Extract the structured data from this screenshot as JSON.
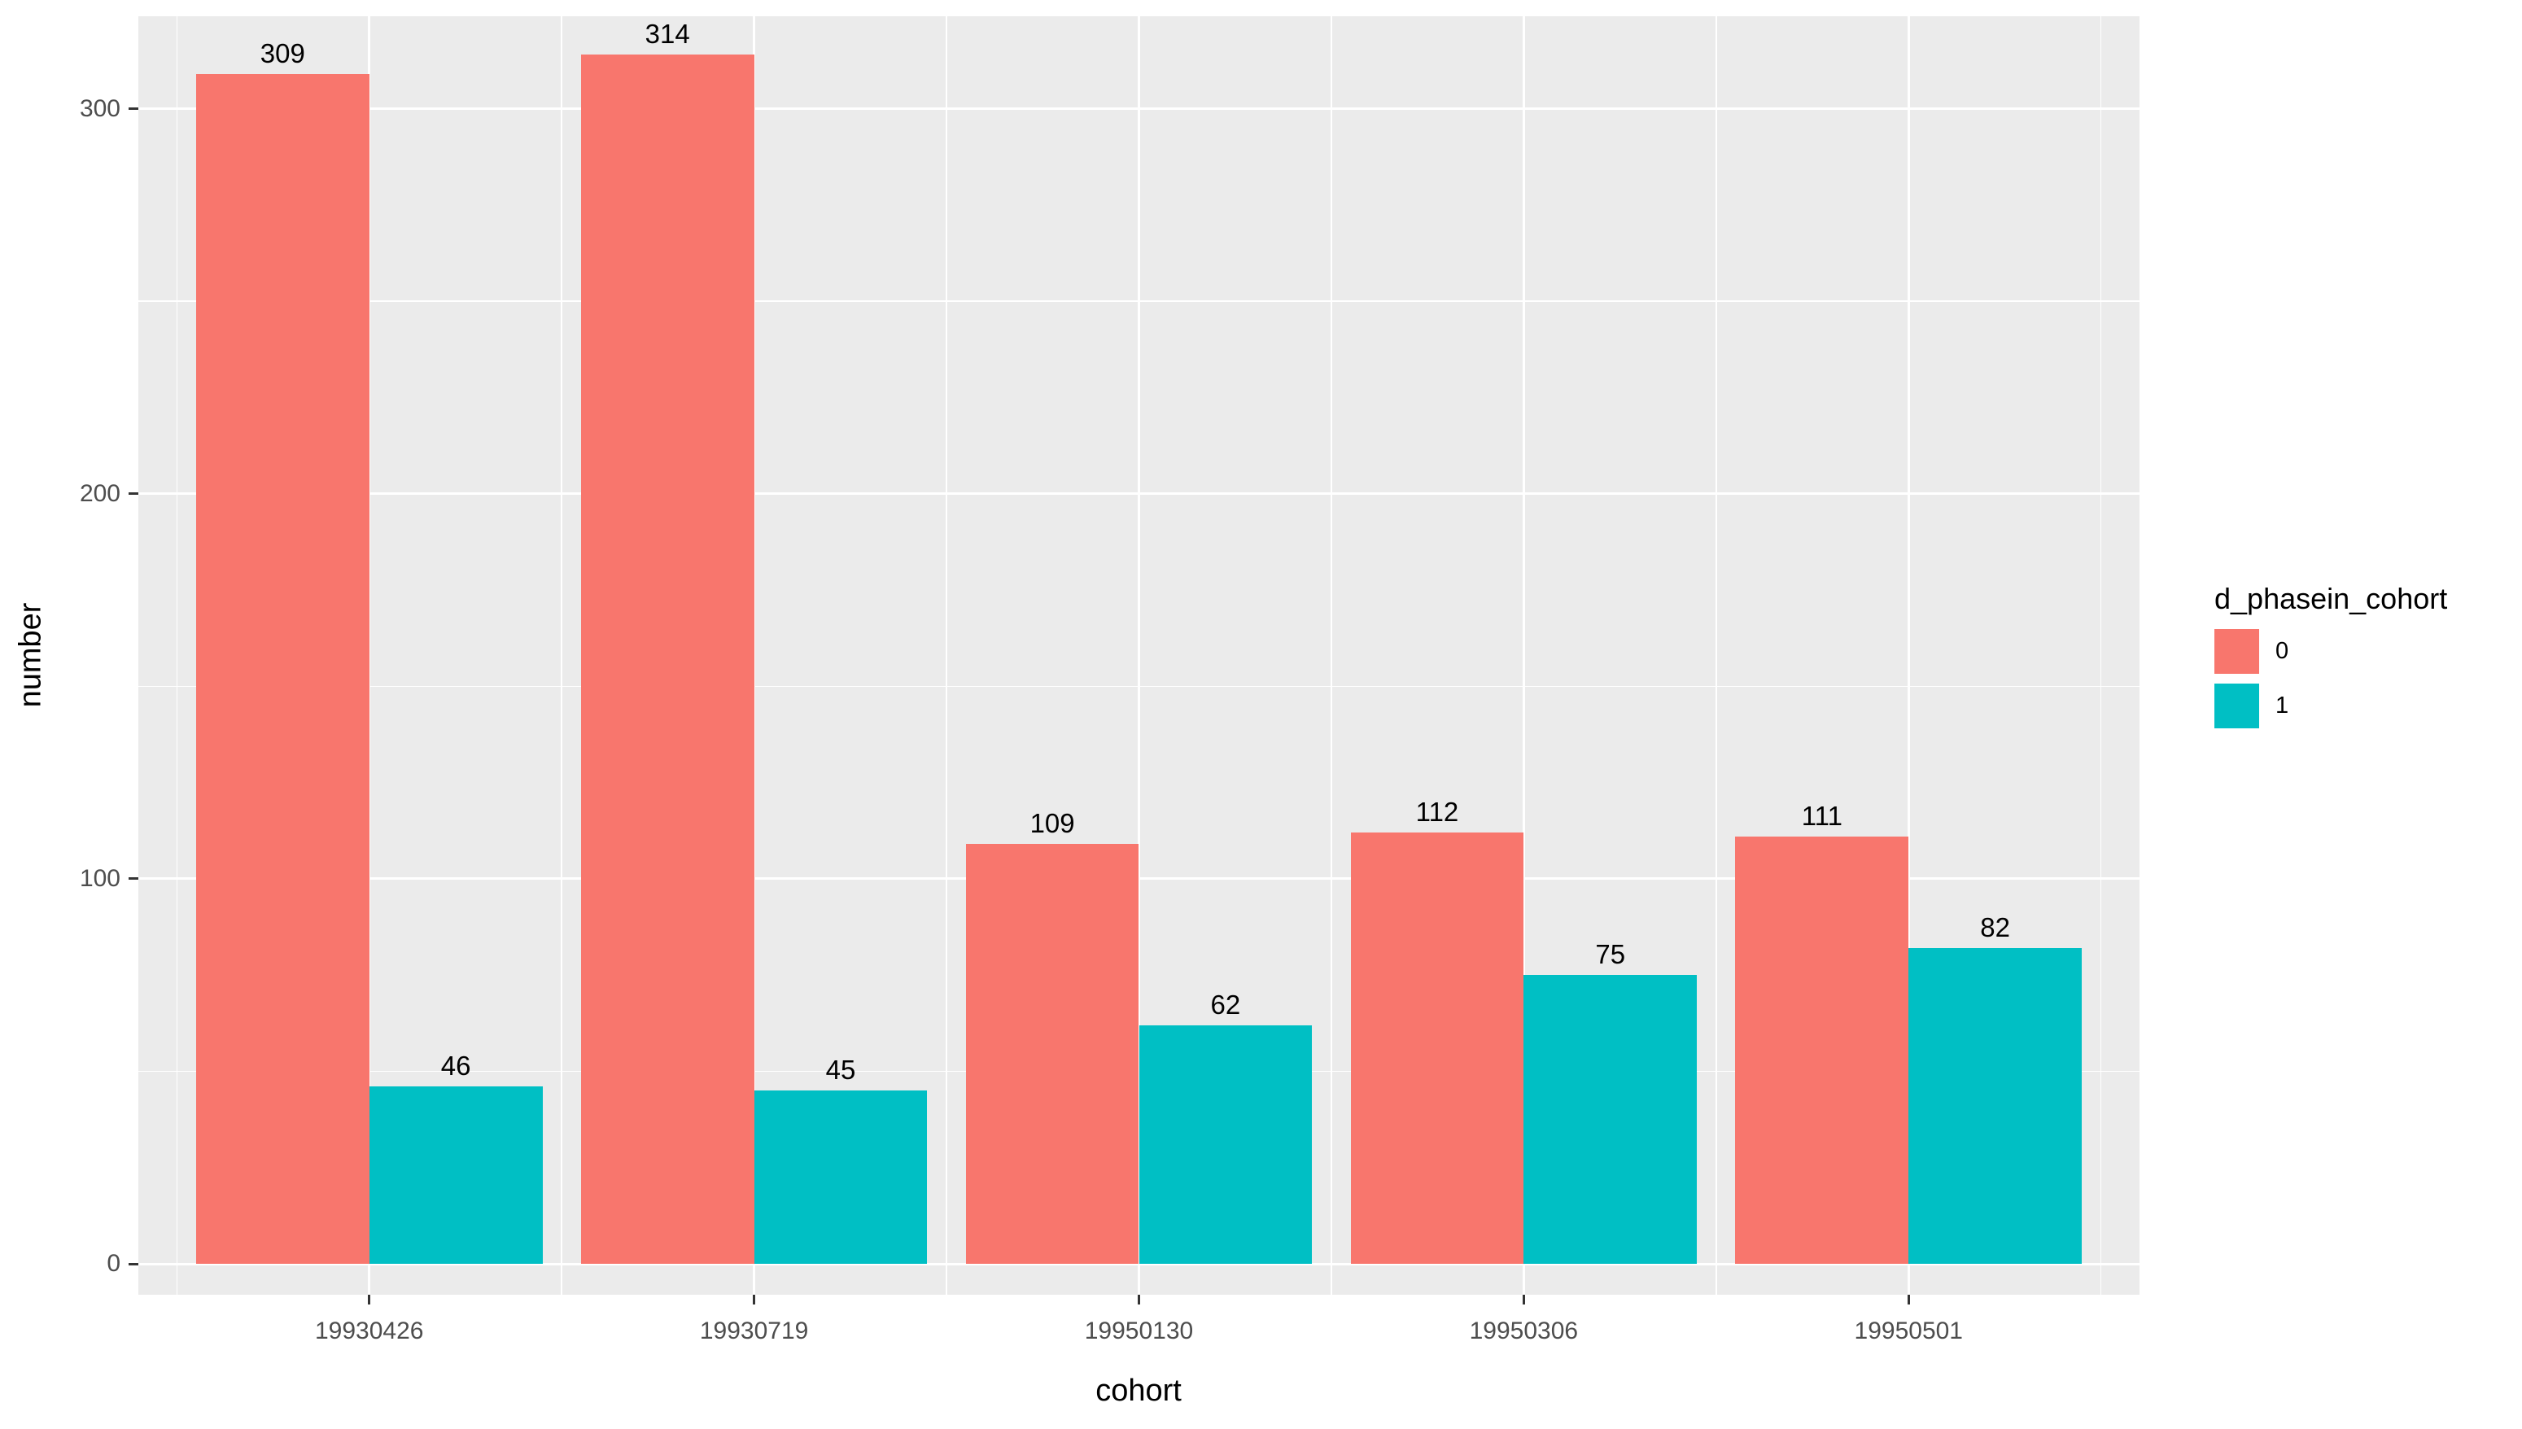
{
  "chart_data": {
    "type": "bar",
    "title": "",
    "xlabel": "cohort",
    "ylabel": "number",
    "categories": [
      "19930426",
      "19930719",
      "19950130",
      "19950306",
      "19950501"
    ],
    "series": [
      {
        "name": "0",
        "color": "#F8766D",
        "values": [
          309,
          314,
          109,
          112,
          111
        ]
      },
      {
        "name": "1",
        "color": "#00BFC4",
        "values": [
          46,
          45,
          62,
          75,
          82
        ]
      }
    ],
    "legend_title": "d_phasein_cohort",
    "legend_position": "right",
    "y_ticks": [
      0,
      100,
      200,
      300
    ],
    "y_minor_ticks": [
      50,
      150,
      250
    ],
    "ylim": [
      -8,
      324
    ],
    "grid": true,
    "panel_bg": "#EBEBEB",
    "grid_color": "#FFFFFF",
    "tick_color": "#333333",
    "tick_label_color": "#4D4D4D",
    "bar_label_color": "#000000"
  }
}
